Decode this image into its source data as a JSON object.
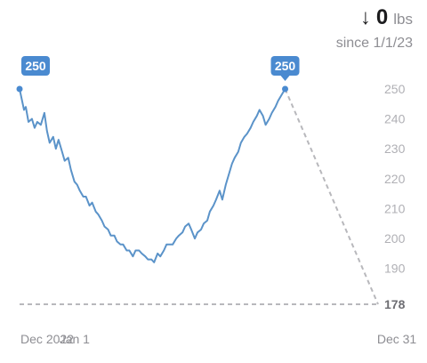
{
  "summary": {
    "arrow": "↓",
    "delta_value": "0",
    "delta_unit": "lbs",
    "since": "since 1/1/23"
  },
  "colors": {
    "line": "#5b93c9",
    "badge": "#4a8ad0",
    "projection": "#b8b8bc",
    "goal": "#b8b8bc"
  },
  "chart_data": {
    "type": "line",
    "title": "",
    "xlabel": "",
    "ylabel": "",
    "ylim": [
      176,
      252
    ],
    "yticks": [
      190,
      200,
      210,
      220,
      230,
      240,
      250
    ],
    "xlim": [
      0,
      405
    ],
    "x_tick_labels": [
      {
        "x": 0,
        "label": "Dec 2022"
      },
      {
        "x": 31,
        "label": "Jan 1"
      },
      {
        "x": 395,
        "label": "Dec 31"
      }
    ],
    "series": [
      {
        "points": [
          [
            0,
            250
          ],
          [
            5,
            243
          ],
          [
            7,
            244
          ],
          [
            10,
            239
          ],
          [
            14,
            240
          ],
          [
            17,
            237
          ],
          [
            20,
            239
          ],
          [
            24,
            238
          ],
          [
            28,
            242
          ],
          [
            31,
            236
          ],
          [
            34,
            232
          ],
          [
            38,
            234
          ],
          [
            41,
            230
          ],
          [
            44,
            233
          ],
          [
            48,
            229
          ],
          [
            51,
            226
          ],
          [
            55,
            227
          ],
          [
            58,
            223
          ],
          [
            62,
            219
          ],
          [
            65,
            218
          ],
          [
            68,
            216
          ],
          [
            72,
            214
          ],
          [
            75,
            214
          ],
          [
            79,
            211
          ],
          [
            82,
            212
          ],
          [
            86,
            209
          ],
          [
            89,
            208
          ],
          [
            93,
            206
          ],
          [
            96,
            204
          ],
          [
            100,
            203
          ],
          [
            103,
            201
          ],
          [
            107,
            201
          ],
          [
            110,
            199
          ],
          [
            114,
            198
          ],
          [
            117,
            198
          ],
          [
            121,
            196
          ],
          [
            124,
            196
          ],
          [
            128,
            194
          ],
          [
            131,
            196
          ],
          [
            135,
            196
          ],
          [
            138,
            195
          ],
          [
            142,
            194
          ],
          [
            145,
            193
          ],
          [
            149,
            193
          ],
          [
            152,
            192
          ],
          [
            156,
            195
          ],
          [
            159,
            194
          ],
          [
            163,
            196
          ],
          [
            166,
            198
          ],
          [
            170,
            198
          ],
          [
            173,
            198
          ],
          [
            177,
            200
          ],
          [
            180,
            201
          ],
          [
            184,
            202
          ],
          [
            187,
            204
          ],
          [
            191,
            205
          ],
          [
            194,
            203
          ],
          [
            198,
            200
          ],
          [
            201,
            202
          ],
          [
            205,
            203
          ],
          [
            208,
            205
          ],
          [
            212,
            206
          ],
          [
            215,
            209
          ],
          [
            219,
            211
          ],
          [
            222,
            213
          ],
          [
            226,
            216
          ],
          [
            229,
            213
          ],
          [
            233,
            218
          ],
          [
            236,
            221
          ],
          [
            240,
            225
          ],
          [
            243,
            227
          ],
          [
            247,
            229
          ],
          [
            250,
            232
          ],
          [
            254,
            234
          ],
          [
            257,
            235
          ],
          [
            261,
            237
          ],
          [
            264,
            239
          ],
          [
            268,
            241
          ],
          [
            271,
            243
          ],
          [
            275,
            241
          ],
          [
            278,
            238
          ],
          [
            282,
            240
          ],
          [
            285,
            242
          ],
          [
            289,
            244
          ],
          [
            292,
            246
          ],
          [
            296,
            248
          ],
          [
            300,
            250
          ]
        ]
      }
    ],
    "projection": {
      "from": [
        300,
        250
      ],
      "to": [
        405,
        178
      ]
    },
    "goal": {
      "value": 178,
      "label": "178"
    },
    "badges": [
      {
        "x": 0,
        "y": 250,
        "label": "250"
      },
      {
        "x": 300,
        "y": 250,
        "label": "250"
      }
    ],
    "grid": false
  }
}
